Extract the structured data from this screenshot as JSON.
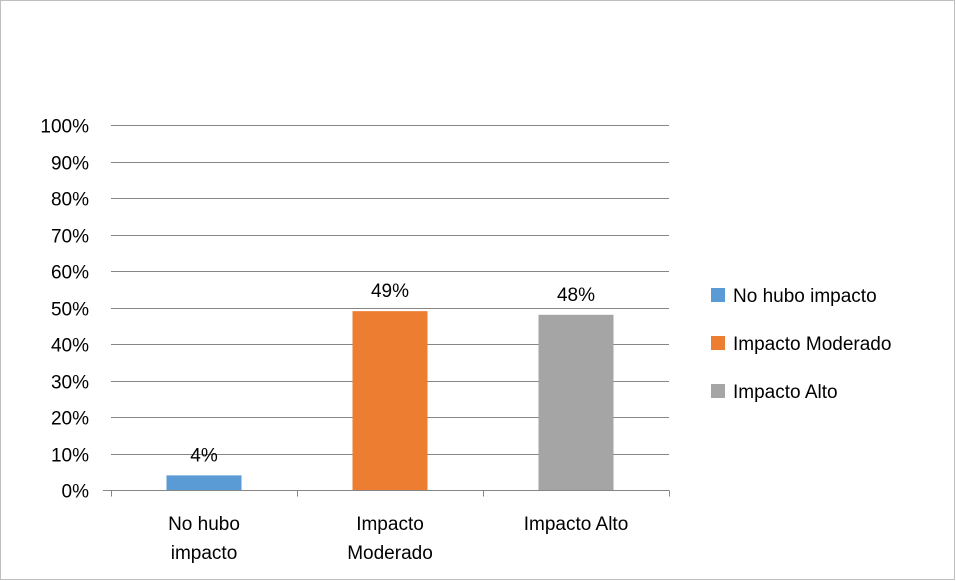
{
  "chart_data": {
    "type": "bar",
    "title": "",
    "xlabel": "",
    "ylabel": "",
    "categories": [
      "No hubo impacto",
      "Impacto Moderado",
      "Impacto Alto"
    ],
    "category_label_lines": [
      [
        "No hubo",
        "impacto"
      ],
      [
        "Impacto",
        "Moderado"
      ],
      [
        "Impacto Alto"
      ]
    ],
    "values": [
      4,
      49,
      48
    ],
    "data_labels": [
      "4%",
      "49%",
      "48%"
    ],
    "ylim": [
      0,
      100
    ],
    "y_ticks": [
      0,
      10,
      20,
      30,
      40,
      50,
      60,
      70,
      80,
      90,
      100
    ],
    "y_tick_labels": [
      "0%",
      "10%",
      "20%",
      "30%",
      "40%",
      "50%",
      "60%",
      "70%",
      "80%",
      "90%",
      "100%"
    ],
    "grid": true,
    "legend": {
      "placement": "right",
      "entries": [
        "No hubo impacto",
        "Impacto Moderado",
        "Impacto Alto"
      ]
    },
    "colors": [
      "#5b9bd5",
      "#ed7d31",
      "#a5a5a5"
    ],
    "gridline_color": "#868686"
  }
}
